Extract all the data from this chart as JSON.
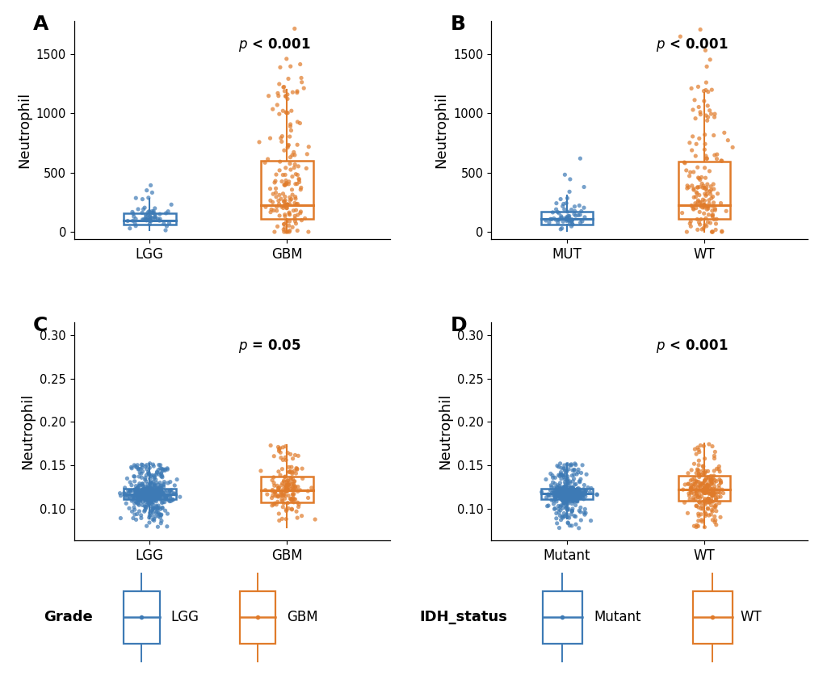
{
  "panel_A": {
    "label": "A",
    "pvalue_text": "p < 0.001",
    "ylabel": "Neutrophil",
    "groups": [
      "LGG",
      "GBM"
    ],
    "colors": [
      "#3d7ab5",
      "#e07b2a"
    ],
    "ylim": [
      -60,
      1780
    ],
    "yticks": [
      0,
      500,
      1000,
      1500
    ],
    "n_samples": [
      52,
      150
    ],
    "box_stats": {
      "LGG": {
        "q1": 65,
        "median": 100,
        "q3": 160,
        "whisker_lo": 15,
        "whisker_hi": 280
      },
      "GBM": {
        "q1": 110,
        "median": 230,
        "q3": 600,
        "whisker_lo": 5,
        "whisker_hi": 1200
      }
    }
  },
  "panel_B": {
    "label": "B",
    "pvalue_text": "p < 0.001",
    "ylabel": "Neutrophil",
    "groups": [
      "MUT",
      "WT"
    ],
    "colors": [
      "#3d7ab5",
      "#e07b2a"
    ],
    "ylim": [
      -60,
      1780
    ],
    "yticks": [
      0,
      500,
      1000,
      1500
    ],
    "n_samples": [
      55,
      147
    ],
    "box_stats": {
      "MUT": {
        "q1": 65,
        "median": 110,
        "q3": 175,
        "whisker_lo": 10,
        "whisker_hi": 310
      },
      "WT": {
        "q1": 110,
        "median": 225,
        "q3": 595,
        "whisker_lo": 5,
        "whisker_hi": 1170
      }
    }
  },
  "panel_C": {
    "label": "C",
    "pvalue_text": "p = 0.05",
    "ylabel": "Neutrophil",
    "groups": [
      "LGG",
      "GBM"
    ],
    "colors": [
      "#3d7ab5",
      "#e07b2a"
    ],
    "ylim": [
      0.063,
      0.315
    ],
    "yticks": [
      0.1,
      0.15,
      0.2,
      0.25,
      0.3
    ],
    "n_samples": [
      524,
      153
    ],
    "box_stats": {
      "LGG": {
        "q1": 0.111,
        "median": 0.116,
        "q3": 0.123,
        "whisker_lo": 0.088,
        "whisker_hi": 0.152
      },
      "GBM": {
        "q1": 0.107,
        "median": 0.121,
        "q3": 0.137,
        "whisker_lo": 0.078,
        "whisker_hi": 0.173
      }
    }
  },
  "panel_D": {
    "label": "D",
    "pvalue_text": "p < 0.001",
    "ylabel": "Neutrophil",
    "groups": [
      "Mutant",
      "WT"
    ],
    "colors": [
      "#3d7ab5",
      "#e07b2a"
    ],
    "ylim": [
      0.063,
      0.315
    ],
    "yticks": [
      0.1,
      0.15,
      0.2,
      0.25,
      0.3
    ],
    "n_samples": [
      424,
      234
    ],
    "box_stats": {
      "Mutant": {
        "q1": 0.111,
        "median": 0.117,
        "q3": 0.123,
        "whisker_lo": 0.088,
        "whisker_hi": 0.152
      },
      "WT": {
        "q1": 0.109,
        "median": 0.122,
        "q3": 0.138,
        "whisker_lo": 0.078,
        "whisker_hi": 0.175
      }
    }
  },
  "blue_color": "#3d7ab5",
  "orange_color": "#e07b2a",
  "bg_color": "#ffffff"
}
